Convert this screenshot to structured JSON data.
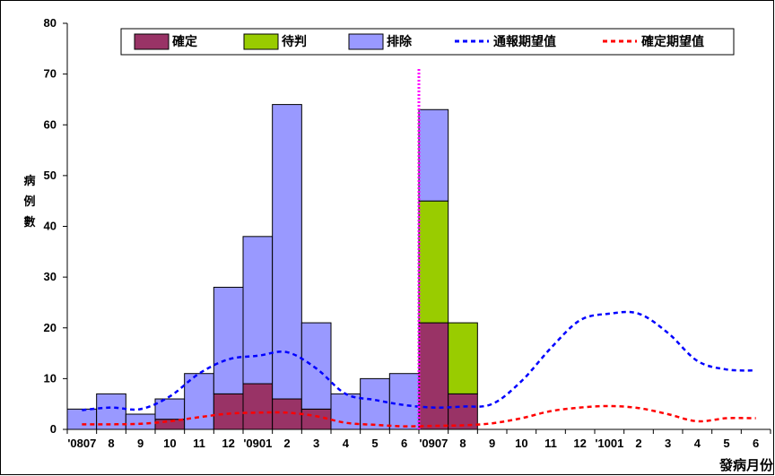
{
  "chart_data": {
    "type": "bar",
    "stacked": true,
    "ylabel": "病例數",
    "xlabel": "發病月份",
    "ylim": [
      0,
      80
    ],
    "yticks": [
      0,
      10,
      20,
      30,
      40,
      50,
      60,
      70,
      80
    ],
    "categories": [
      "'0807",
      "8",
      "9",
      "10",
      "11",
      "12",
      "'0901",
      "2",
      "3",
      "4",
      "5",
      "6",
      "'0907",
      "8",
      "9",
      "10",
      "11",
      "12",
      "'1001",
      "2",
      "3",
      "4",
      "5",
      "6"
    ],
    "bars": {
      "confirmed": [
        0,
        0,
        0,
        2,
        0,
        7,
        9,
        6,
        4,
        0,
        0,
        0,
        21,
        7,
        null,
        null,
        null,
        null,
        null,
        null,
        null,
        null,
        null,
        null
      ],
      "pending": [
        0,
        0,
        0,
        0,
        0,
        0,
        0,
        0,
        0,
        0,
        0,
        0,
        24,
        14,
        null,
        null,
        null,
        null,
        null,
        null,
        null,
        null,
        null,
        null
      ],
      "excluded": [
        4,
        7,
        3,
        4,
        11,
        21,
        29,
        58,
        17,
        7,
        10,
        11,
        18,
        0,
        null,
        null,
        null,
        null,
        null,
        null,
        null,
        null,
        null,
        null
      ]
    },
    "series": [
      {
        "name": "確定",
        "kind": "bar",
        "color": "#993366"
      },
      {
        "name": "待判",
        "kind": "bar",
        "color": "#99cc00"
      },
      {
        "name": "排除",
        "kind": "bar",
        "color": "#9999ff"
      },
      {
        "name": "通報期望值",
        "kind": "line",
        "style": "dashed",
        "color": "#0000ff",
        "values": [
          3.8,
          4.3,
          4.0,
          6.5,
          11.0,
          13.8,
          14.5,
          15.2,
          12.0,
          7.0,
          5.8,
          4.8,
          4.3,
          4.5,
          5.0,
          9.5,
          16.0,
          21.5,
          22.8,
          22.8,
          19.0,
          13.5,
          11.8,
          11.6
        ]
      },
      {
        "name": "確定期望值",
        "kind": "line",
        "style": "dashed",
        "color": "#ff0000",
        "values": [
          1.0,
          1.0,
          1.1,
          1.6,
          2.4,
          3.1,
          3.3,
          3.3,
          2.6,
          1.3,
          0.9,
          0.6,
          0.7,
          0.8,
          1.2,
          2.2,
          3.6,
          4.3,
          4.6,
          4.2,
          3.0,
          1.6,
          2.2,
          2.2
        ]
      }
    ],
    "marker": {
      "category_index": 12,
      "style": "dotted",
      "color": "#ff00ff"
    },
    "legend_position": "top"
  }
}
